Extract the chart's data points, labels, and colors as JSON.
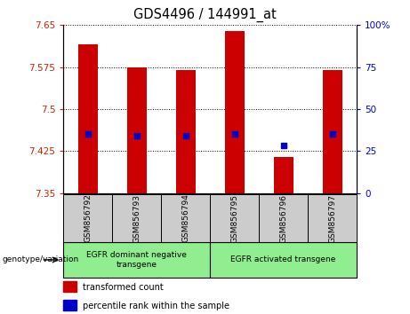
{
  "title": "GDS4496 / 144991_at",
  "samples": [
    "GSM856792",
    "GSM856793",
    "GSM856794",
    "GSM856795",
    "GSM856796",
    "GSM856797"
  ],
  "bar_values": [
    7.615,
    7.575,
    7.57,
    7.64,
    7.415,
    7.57
  ],
  "bar_bottom": 7.35,
  "percentile_values": [
    7.455,
    7.452,
    7.453,
    7.455,
    7.435,
    7.455
  ],
  "ylim_left": [
    7.35,
    7.65
  ],
  "ylim_right": [
    0,
    100
  ],
  "yticks_left": [
    7.35,
    7.425,
    7.5,
    7.575,
    7.65
  ],
  "ytick_labels_left": [
    "7.35",
    "7.425",
    "7.5",
    "7.575",
    "7.65"
  ],
  "yticks_right": [
    0,
    25,
    50,
    75,
    100
  ],
  "ytick_labels_right": [
    "0",
    "25",
    "50",
    "75",
    "100%"
  ],
  "bar_color": "#cc0000",
  "percentile_color": "#0000cc",
  "left_tick_color": "#cc2200",
  "right_tick_color": "#0000cc",
  "group1_label": "EGFR dominant negative\ntransgene",
  "group2_label": "EGFR activated transgene",
  "group_color": "#90ee90",
  "sample_box_color": "#cccccc",
  "genotype_label": "genotype/variation",
  "legend_items": [
    {
      "color": "#cc0000",
      "label": "transformed count"
    },
    {
      "color": "#0000cc",
      "label": "percentile rank within the sample"
    }
  ]
}
